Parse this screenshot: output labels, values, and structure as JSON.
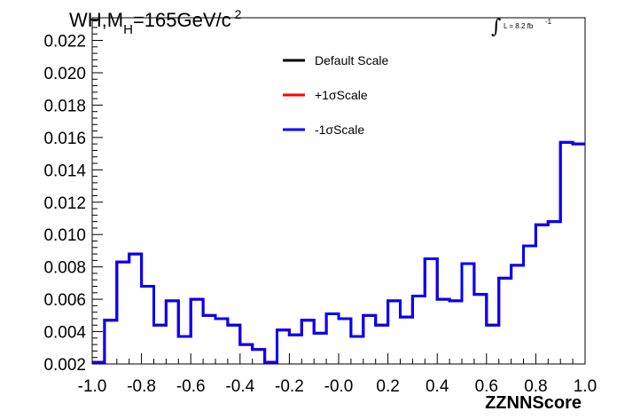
{
  "chart_data": {
    "type": "line",
    "title": {
      "main": "WH,M",
      "sub": "H",
      "tail": "=165GeV/c",
      "sup": "2"
    },
    "lumi": {
      "symbol": "∫",
      "text": "L = 8.2 fb",
      "sup": "-1"
    },
    "xlabel": "ZZNNScore",
    "ylabel": "",
    "xlim": [
      -1.0,
      1.0
    ],
    "ylim": [
      0.002,
      0.0234
    ],
    "x_ticks": [
      -1.0,
      -0.8,
      -0.6,
      -0.4,
      -0.2,
      0.0,
      0.2,
      0.4,
      0.6,
      0.8,
      1.0
    ],
    "x_tick_labels": [
      "-1.0",
      "-0.8",
      "-0.6",
      "-0.4",
      "-0.2",
      "-0.0",
      "0.2",
      "0.4",
      "0.6",
      "0.8",
      "1.0"
    ],
    "y_ticks": [
      0.002,
      0.004,
      0.006,
      0.008,
      0.01,
      0.012,
      0.014,
      0.016,
      0.018,
      0.02,
      0.022
    ],
    "y_tick_labels": [
      "0.002",
      "0.004",
      "0.006",
      "0.008",
      "0.010",
      "0.012",
      "0.014",
      "0.016",
      "0.018",
      "0.020",
      "0.022"
    ],
    "bin_edges": [
      -1.0,
      -0.95,
      -0.9,
      -0.85,
      -0.8,
      -0.75,
      -0.7,
      -0.65,
      -0.6,
      -0.55,
      -0.5,
      -0.45,
      -0.4,
      -0.35,
      -0.3,
      -0.25,
      -0.2,
      -0.15,
      -0.1,
      -0.05,
      0.0,
      0.05,
      0.1,
      0.15,
      0.2,
      0.25,
      0.3,
      0.35,
      0.4,
      0.45,
      0.5,
      0.55,
      0.6,
      0.65,
      0.7,
      0.75,
      0.8,
      0.85,
      0.9,
      0.95,
      1.0
    ],
    "legend": {
      "placement": "top-center"
    },
    "series": [
      {
        "name": "Default Scale",
        "color": "#000000",
        "values": [
          0.0021,
          0.0047,
          0.0083,
          0.0088,
          0.0068,
          0.0044,
          0.0059,
          0.0037,
          0.006,
          0.005,
          0.0048,
          0.0044,
          0.0032,
          0.0029,
          0.0021,
          0.0041,
          0.0038,
          0.0047,
          0.0039,
          0.0051,
          0.0048,
          0.0037,
          0.005,
          0.0044,
          0.0059,
          0.0049,
          0.0062,
          0.0085,
          0.006,
          0.0059,
          0.0082,
          0.0063,
          0.0044,
          0.0073,
          0.0081,
          0.0093,
          0.0106,
          0.0108,
          0.0157,
          0.0156
        ]
      },
      {
        "name": "+1σScale",
        "color": "#ff0000",
        "values": [
          0.0021,
          0.0047,
          0.0083,
          0.0088,
          0.0068,
          0.0044,
          0.0059,
          0.0037,
          0.006,
          0.005,
          0.0048,
          0.0044,
          0.0032,
          0.0029,
          0.0021,
          0.0041,
          0.0038,
          0.0047,
          0.0039,
          0.0051,
          0.0048,
          0.0037,
          0.005,
          0.0044,
          0.0059,
          0.0049,
          0.0062,
          0.0085,
          0.006,
          0.0059,
          0.0082,
          0.0063,
          0.0044,
          0.0073,
          0.0081,
          0.0093,
          0.0106,
          0.0108,
          0.0157,
          0.0156
        ]
      },
      {
        "name": "-1σScale",
        "color": "#0000ff",
        "values": [
          0.0021,
          0.0047,
          0.0083,
          0.0088,
          0.0068,
          0.0044,
          0.0059,
          0.0037,
          0.006,
          0.005,
          0.0048,
          0.0044,
          0.0032,
          0.0029,
          0.0021,
          0.0041,
          0.0038,
          0.0047,
          0.0039,
          0.0051,
          0.0048,
          0.0037,
          0.005,
          0.0044,
          0.0059,
          0.0049,
          0.0062,
          0.0085,
          0.006,
          0.0059,
          0.0082,
          0.0063,
          0.0044,
          0.0073,
          0.0081,
          0.0093,
          0.0106,
          0.0108,
          0.0157,
          0.0156
        ]
      }
    ],
    "grid": false
  }
}
